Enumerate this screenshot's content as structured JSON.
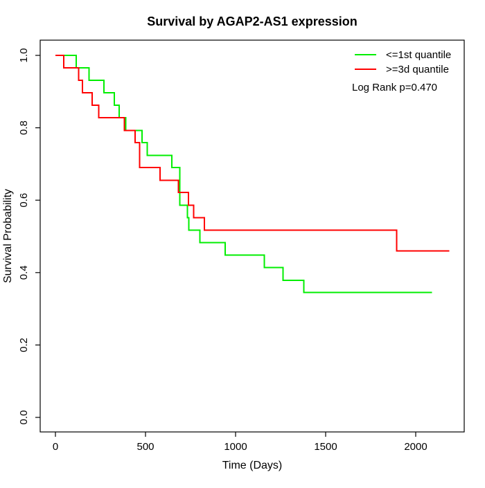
{
  "title": "Survival by AGAP2-AS1 expression",
  "chart_data": {
    "type": "line",
    "subtype": "kaplan-meier-step",
    "title": "Survival by AGAP2-AS1 expression",
    "xlabel": "Time (Days)",
    "ylabel": "Survival Probability",
    "xlim": [
      0,
      2270
    ],
    "ylim": [
      0,
      1
    ],
    "x_ticks": [
      0,
      500,
      1000,
      1500,
      2000
    ],
    "y_ticks": [
      "0.0",
      "0.2",
      "0.4",
      "0.6",
      "0.8",
      "1.0"
    ],
    "grid": false,
    "legend_position": "top-right",
    "annotation": "Log Rank p=0.470",
    "series": [
      {
        "name": "<=1st quantile",
        "color": "#00ee00",
        "end_time": 2090,
        "points": [
          [
            0,
            1.0
          ],
          [
            115,
            0.966
          ],
          [
            186,
            0.931
          ],
          [
            269,
            0.897
          ],
          [
            327,
            0.862
          ],
          [
            353,
            0.828
          ],
          [
            391,
            0.793
          ],
          [
            481,
            0.759
          ],
          [
            510,
            0.724
          ],
          [
            647,
            0.69
          ],
          [
            691,
            0.586
          ],
          [
            733,
            0.552
          ],
          [
            741,
            0.517
          ],
          [
            801,
            0.483
          ],
          [
            942,
            0.448
          ],
          [
            1160,
            0.414
          ],
          [
            1263,
            0.379
          ],
          [
            1378,
            0.345
          ]
        ]
      },
      {
        "name": ">=3d quantile",
        "color": "#ff0000",
        "end_time": 2186,
        "points": [
          [
            0,
            1.0
          ],
          [
            46,
            0.966
          ],
          [
            128,
            0.931
          ],
          [
            150,
            0.897
          ],
          [
            203,
            0.862
          ],
          [
            241,
            0.828
          ],
          [
            382,
            0.793
          ],
          [
            442,
            0.759
          ],
          [
            468,
            0.69
          ],
          [
            580,
            0.655
          ],
          [
            682,
            0.621
          ],
          [
            738,
            0.586
          ],
          [
            768,
            0.552
          ],
          [
            827,
            0.517
          ],
          [
            1894,
            0.46
          ]
        ]
      }
    ]
  }
}
